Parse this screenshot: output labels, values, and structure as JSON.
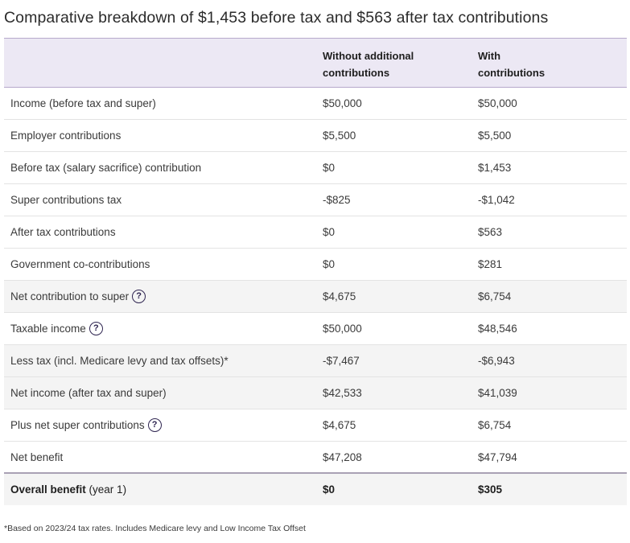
{
  "title": "Comparative breakdown of $1,453 before tax and $563 after tax contributions",
  "columns": {
    "col2_line1": "Without additional",
    "col2_line2": "contributions",
    "col3_line1": "With",
    "col3_line2": "contributions"
  },
  "rows": [
    {
      "label": "Income (before tax and super)",
      "without": "$50,000",
      "with": "$50,000"
    },
    {
      "label": "Employer contributions",
      "without": "$5,500",
      "with": "$5,500"
    },
    {
      "label": "Before tax (salary sacrifice) contribution",
      "without": "$0",
      "with": "$1,453"
    },
    {
      "label": "Super contributions tax",
      "without": "-$825",
      "with": "-$1,042"
    },
    {
      "label": "After tax contributions",
      "without": "$0",
      "with": "$563"
    },
    {
      "label": "Government co-contributions",
      "without": "$0",
      "with": "$281"
    },
    {
      "label": "Net contribution to super",
      "without": "$4,675",
      "with": "$6,754",
      "info": "?"
    },
    {
      "label": "Taxable income",
      "without": "$50,000",
      "with": "$48,546",
      "info": "?"
    },
    {
      "label": "Less tax (incl. Medicare levy and tax offsets)*",
      "without": "-$7,467",
      "with": "-$6,943"
    },
    {
      "label": "Net income (after tax and super)",
      "without": "$42,533",
      "with": "$41,039"
    },
    {
      "label": "Plus net super contributions",
      "without": "$4,675",
      "with": "$6,754",
      "info": "?"
    },
    {
      "label": "Net benefit",
      "without": "$47,208",
      "with": "$47,794"
    }
  ],
  "total": {
    "label_bold": "Overall benefit",
    "label_rest": " (year 1)",
    "without": "$0",
    "with": "$305"
  },
  "footnote": "*Based on 2023/24 tax rates. Includes Medicare levy and Low Income Tax Offset",
  "colors": {
    "header_bg": "#ece8f4",
    "shaded_row": "#f4f4f4",
    "icon": "#2e2450"
  }
}
